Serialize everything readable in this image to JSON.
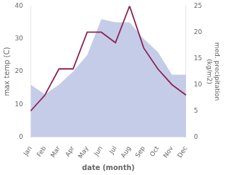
{
  "chart_data": {
    "type": "line",
    "categories": [
      "Jan",
      "Feb",
      "Mar",
      "Apr",
      "May",
      "Jun",
      "Jul",
      "Aug",
      "Sep",
      "Oct",
      "Nov",
      "Dec"
    ],
    "series": [
      {
        "type": "area",
        "color": "#c5cce8",
        "values": [
          16,
          13,
          16,
          20,
          25,
          36,
          35,
          35,
          30,
          26,
          19,
          19
        ]
      },
      {
        "type": "line",
        "color": "#8b2252",
        "axis": "y2",
        "values": [
          5,
          8,
          13,
          13,
          20,
          20,
          18,
          25,
          17,
          13,
          10,
          8
        ]
      }
    ],
    "xlabel": "date (month)",
    "ylabel": "max temp (C)",
    "y2label": "med. precipitation\n(kg/m2)",
    "ylim": [
      0,
      40
    ],
    "yticks": [
      0,
      10,
      20,
      30,
      40
    ],
    "y2lim": [
      0,
      25
    ],
    "y2ticks": [
      0,
      5,
      10,
      15,
      20,
      25
    ],
    "grid": false
  }
}
